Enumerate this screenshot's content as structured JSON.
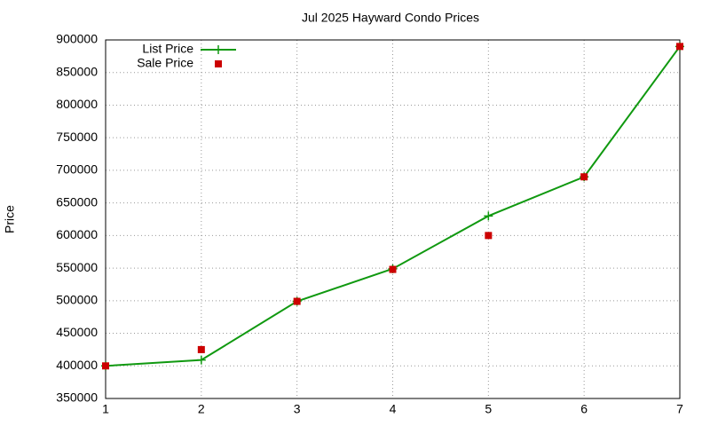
{
  "chart_data": {
    "type": "line",
    "title": "Jul 2025 Hayward Condo Prices",
    "y_label": "Price",
    "x": [
      1,
      2,
      3,
      4,
      5,
      6,
      7
    ],
    "series": [
      {
        "name": "List Price",
        "color": "#109910",
        "marker": "plus",
        "line": true,
        "values": [
          400000,
          409000,
          499000,
          549000,
          630000,
          690000,
          890000
        ]
      },
      {
        "name": "Sale Price",
        "color": "#cc0000",
        "marker": "square",
        "line": false,
        "values": [
          400000,
          425000,
          499000,
          548000,
          600000,
          690000,
          890000
        ]
      }
    ],
    "xlim": [
      1,
      7
    ],
    "xticks": [
      1,
      2,
      3,
      4,
      5,
      6,
      7
    ],
    "ylim": [
      350000,
      900000
    ],
    "yticks": [
      350000,
      400000,
      450000,
      500000,
      550000,
      600000,
      650000,
      700000,
      750000,
      800000,
      850000,
      900000
    ],
    "grid": true,
    "legend": "top-left"
  }
}
